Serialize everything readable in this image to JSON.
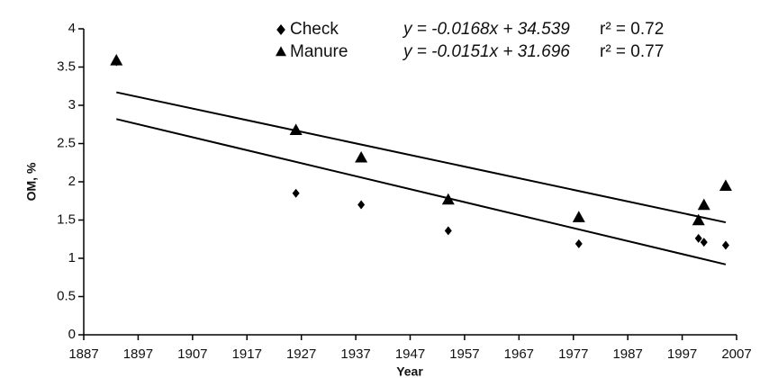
{
  "chart_data": {
    "type": "scatter",
    "x_label": "Year",
    "y_label": "OM, %",
    "xlim": [
      1887,
      2007
    ],
    "xticks": [
      1887,
      1897,
      1907,
      1917,
      1927,
      1937,
      1947,
      1957,
      1967,
      1977,
      1987,
      1997,
      2007
    ],
    "ylim": [
      0,
      4
    ],
    "yticks": [
      0,
      0.5,
      1,
      1.5,
      2,
      2.5,
      3,
      3.5,
      4
    ],
    "grid": false,
    "series": [
      {
        "name": "Check",
        "marker": "diamond",
        "color": "#000000",
        "equation": "y = -0.0168x + 34.539",
        "r2": "r² = 0.72",
        "x": [
          1893,
          1926,
          1938,
          1954,
          1978,
          2000,
          2001,
          2005
        ],
        "values": [
          3.57,
          1.85,
          1.7,
          1.36,
          1.19,
          1.26,
          1.21,
          1.17
        ],
        "trend": {
          "x": [
            1893,
            2005
          ],
          "values": [
            2.82,
            0.92
          ]
        }
      },
      {
        "name": "Manure",
        "marker": "triangle",
        "color": "#000000",
        "equation": "y = -0.0151x + 31.696",
        "r2": "r² = 0.77",
        "x": [
          1893,
          1926,
          1938,
          1954,
          1978,
          2000,
          2001,
          2005
        ],
        "values": [
          3.58,
          2.67,
          2.31,
          1.76,
          1.53,
          1.49,
          1.69,
          1.94
        ],
        "trend": {
          "x": [
            1893,
            2005
          ],
          "values": [
            3.17,
            1.47
          ]
        }
      }
    ]
  }
}
